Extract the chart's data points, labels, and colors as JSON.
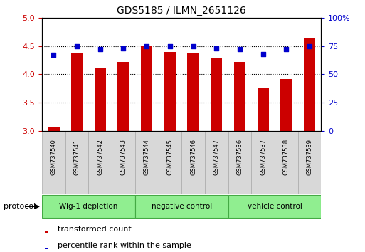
{
  "title": "GDS5185 / ILMN_2651126",
  "samples": [
    "GSM737540",
    "GSM737541",
    "GSM737542",
    "GSM737543",
    "GSM737544",
    "GSM737545",
    "GSM737546",
    "GSM737547",
    "GSM737536",
    "GSM737537",
    "GSM737538",
    "GSM737539"
  ],
  "bar_values": [
    3.07,
    4.38,
    4.11,
    4.22,
    4.5,
    4.39,
    4.37,
    4.28,
    4.22,
    3.76,
    3.92,
    4.65
  ],
  "dot_values": [
    67,
    75,
    72,
    73,
    75,
    75,
    75,
    73,
    72,
    68,
    72,
    75
  ],
  "groups": [
    {
      "label": "Wig-1 depletion",
      "start": 0,
      "end": 4
    },
    {
      "label": "negative control",
      "start": 4,
      "end": 8
    },
    {
      "label": "vehicle control",
      "start": 8,
      "end": 12
    }
  ],
  "bar_color": "#cc0000",
  "dot_color": "#0000cc",
  "ylim_left": [
    3.0,
    5.0
  ],
  "ylim_right": [
    0,
    100
  ],
  "yticks_left": [
    3.0,
    3.5,
    4.0,
    4.5,
    5.0
  ],
  "yticks_right": [
    0,
    25,
    50,
    75,
    100
  ],
  "grid_dotted_at": [
    3.5,
    4.0,
    4.5
  ],
  "cell_bg": "#d8d8d8",
  "cell_edge": "#aaaaaa",
  "group_fill": "#90EE90",
  "group_edge": "#44aa44",
  "protocol_label": "protocol",
  "legend_items": [
    {
      "color": "#cc0000",
      "label": "transformed count"
    },
    {
      "color": "#0000cc",
      "label": "percentile rank within the sample"
    }
  ]
}
